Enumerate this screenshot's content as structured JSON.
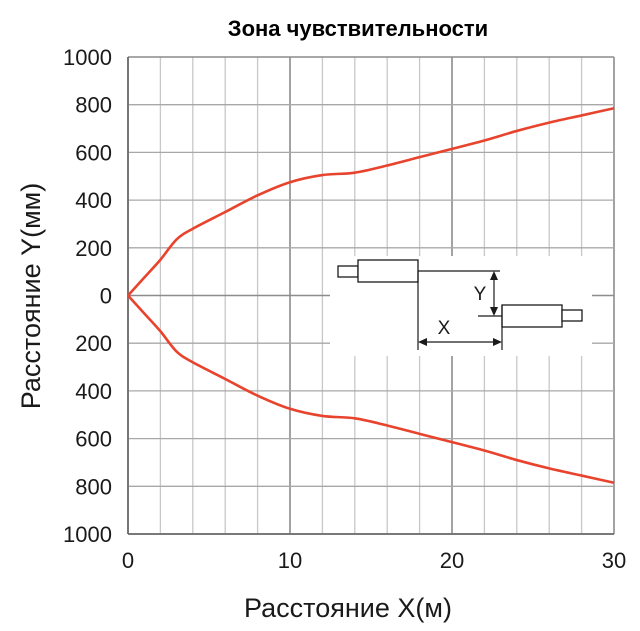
{
  "chart_data": {
    "type": "line",
    "title": "Зона чувствительности",
    "xlabel": "Расстояние X(м)",
    "ylabel": "Расстояние Y(мм)",
    "xlim": [
      0,
      30
    ],
    "ylim": [
      -1000,
      1000
    ],
    "x_ticks": [
      0,
      10,
      20,
      30
    ],
    "x_tick_labels": [
      "0",
      "10",
      "20",
      "30"
    ],
    "y_ticks": [
      1000,
      800,
      600,
      400,
      200,
      0,
      -200,
      -400,
      -600,
      -800,
      -1000
    ],
    "y_tick_labels": [
      "1000",
      "800",
      "600",
      "400",
      "200",
      "0",
      "200",
      "400",
      "600",
      "800",
      "1000"
    ],
    "grid": true,
    "series": [
      {
        "color": "#e8432d",
        "x": [
          0,
          1,
          2,
          3,
          4,
          6,
          8,
          10,
          12,
          14,
          16,
          18,
          20,
          22,
          24,
          26,
          28,
          30
        ],
        "y": [
          0,
          75,
          150,
          235,
          280,
          350,
          420,
          475,
          505,
          515,
          545,
          580,
          615,
          650,
          690,
          725,
          755,
          785
        ]
      },
      {
        "color": "#e8432d",
        "x": [
          0,
          1,
          2,
          3,
          4,
          6,
          8,
          10,
          12,
          14,
          16,
          18,
          20,
          22,
          24,
          26,
          28,
          30
        ],
        "y": [
          0,
          -75,
          -150,
          -235,
          -280,
          -350,
          -420,
          -475,
          -505,
          -515,
          -545,
          -580,
          -615,
          -650,
          -690,
          -725,
          -755,
          -785
        ]
      }
    ]
  },
  "inset": {
    "x_label": "X",
    "y_label": "Y"
  }
}
